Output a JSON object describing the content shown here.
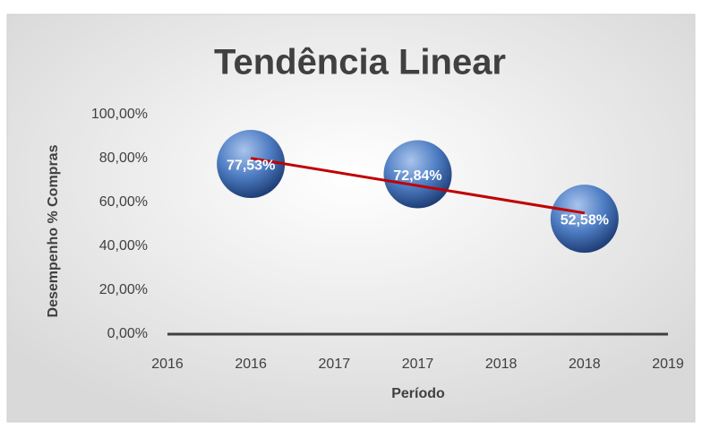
{
  "chart_data": {
    "type": "scatter",
    "title": "Tendência Linear",
    "xlabel": "Período",
    "ylabel": "Desempenho % Compras",
    "x": [
      2016,
      2017,
      2018
    ],
    "series": [
      {
        "color": "#4f7ec4",
        "values": [
          77.53,
          72.84,
          52.58
        ],
        "value_labels": [
          "77,53%",
          "72,84%",
          "52,58%"
        ]
      }
    ],
    "trendline": {
      "type": "linear",
      "color": "#c00000"
    },
    "xlim": [
      2015.5,
      2018.5
    ],
    "xticks": [
      {
        "value": 2015.5,
        "label": "2016"
      },
      2016,
      {
        "value": 2016.5,
        "label": "2017"
      },
      2017,
      {
        "value": 2017.5,
        "label": "2018"
      },
      2018,
      {
        "value": 2018.5,
        "label": "2019"
      }
    ],
    "ylim": [
      0,
      100
    ],
    "yticks": [
      {
        "value": 0,
        "label": "0,00%"
      },
      {
        "value": 20,
        "label": "20,00%"
      },
      {
        "value": 40,
        "label": "40,00%"
      },
      {
        "value": 60,
        "label": "60,00%"
      },
      {
        "value": 80,
        "label": "80,00%"
      },
      {
        "value": 100,
        "label": "100,00%"
      }
    ]
  }
}
